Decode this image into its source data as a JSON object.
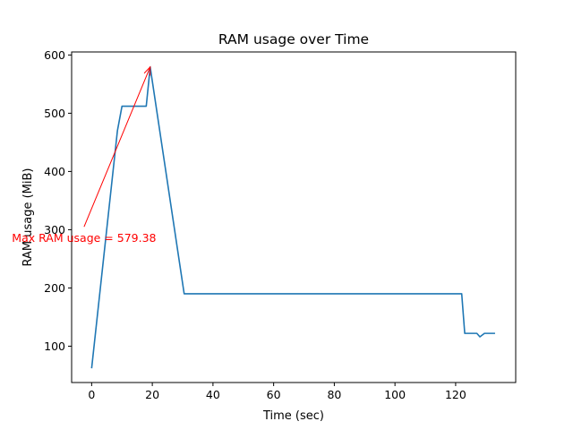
{
  "chart_data": {
    "type": "line",
    "title": "RAM usage over Time",
    "xlabel": "Time (sec)",
    "ylabel": "RAM usage (MiB)",
    "xlim": [
      -6.6,
      139.8
    ],
    "ylim": [
      37.6,
      605.2
    ],
    "xticks": [
      0,
      20,
      40,
      60,
      80,
      100,
      120
    ],
    "yticks": [
      100,
      200,
      300,
      400,
      500,
      600
    ],
    "grid": false,
    "line_color": "#1f77b4",
    "series": [
      {
        "x": [
          0,
          8.5,
          10,
          18,
          19.3,
          30.5,
          31,
          122,
          123,
          127,
          128,
          129.5,
          133
        ],
        "y": [
          62,
          470,
          512,
          512,
          579.38,
          190,
          190,
          190,
          122,
          122,
          116,
          122,
          122
        ]
      }
    ],
    "annotation": {
      "text": "Max RAM usage = 579.38",
      "color": "#ff0000",
      "point": [
        19.3,
        579.38
      ],
      "text_at": [
        -2.5,
        305
      ]
    }
  }
}
